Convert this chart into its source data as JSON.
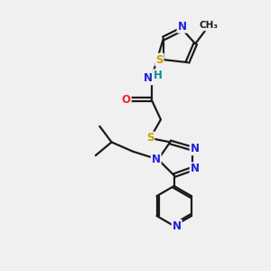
{
  "bg_color": "#f0f0f0",
  "bond_color": "#1a1a1a",
  "N_color": "#2020dd",
  "S_color": "#c8a000",
  "O_color": "#ff2020",
  "H_color": "#009090",
  "line_width": 1.6,
  "figsize": [
    3.0,
    3.0
  ],
  "dpi": 100,
  "xlim": [
    0,
    10
  ],
  "ylim": [
    0,
    10
  ]
}
